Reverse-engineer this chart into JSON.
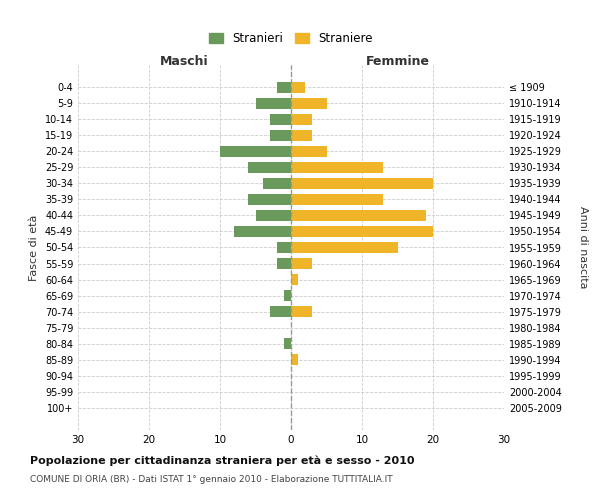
{
  "age_groups": [
    "0-4",
    "5-9",
    "10-14",
    "15-19",
    "20-24",
    "25-29",
    "30-34",
    "35-39",
    "40-44",
    "45-49",
    "50-54",
    "55-59",
    "60-64",
    "65-69",
    "70-74",
    "75-79",
    "80-84",
    "85-89",
    "90-94",
    "95-99",
    "100+"
  ],
  "birth_years": [
    "2005-2009",
    "2000-2004",
    "1995-1999",
    "1990-1994",
    "1985-1989",
    "1980-1984",
    "1975-1979",
    "1970-1974",
    "1965-1969",
    "1960-1964",
    "1955-1959",
    "1950-1954",
    "1945-1949",
    "1940-1944",
    "1935-1939",
    "1930-1934",
    "1925-1929",
    "1920-1924",
    "1915-1919",
    "1910-1914",
    "≤ 1909"
  ],
  "males": [
    2,
    5,
    3,
    3,
    10,
    6,
    4,
    6,
    5,
    8,
    2,
    2,
    0,
    1,
    3,
    0,
    1,
    0,
    0,
    0,
    0
  ],
  "females": [
    2,
    5,
    3,
    3,
    5,
    13,
    20,
    13,
    19,
    20,
    15,
    3,
    1,
    0,
    3,
    0,
    0,
    1,
    0,
    0,
    0
  ],
  "male_color": "#6a9a5b",
  "female_color": "#f0b429",
  "center_line_color": "#888888",
  "grid_color": "#cccccc",
  "background_color": "#ffffff",
  "xlim": 30,
  "title": "Popolazione per cittadinanza straniera per età e sesso - 2010",
  "subtitle": "COMUNE DI ORIA (BR) - Dati ISTAT 1° gennaio 2010 - Elaborazione TUTTITALIA.IT",
  "xlabel_left": "Maschi",
  "xlabel_right": "Femmine",
  "ylabel_left": "Fasce di età",
  "ylabel_right": "Anni di nascita",
  "legend_male": "Stranieri",
  "legend_female": "Straniere"
}
